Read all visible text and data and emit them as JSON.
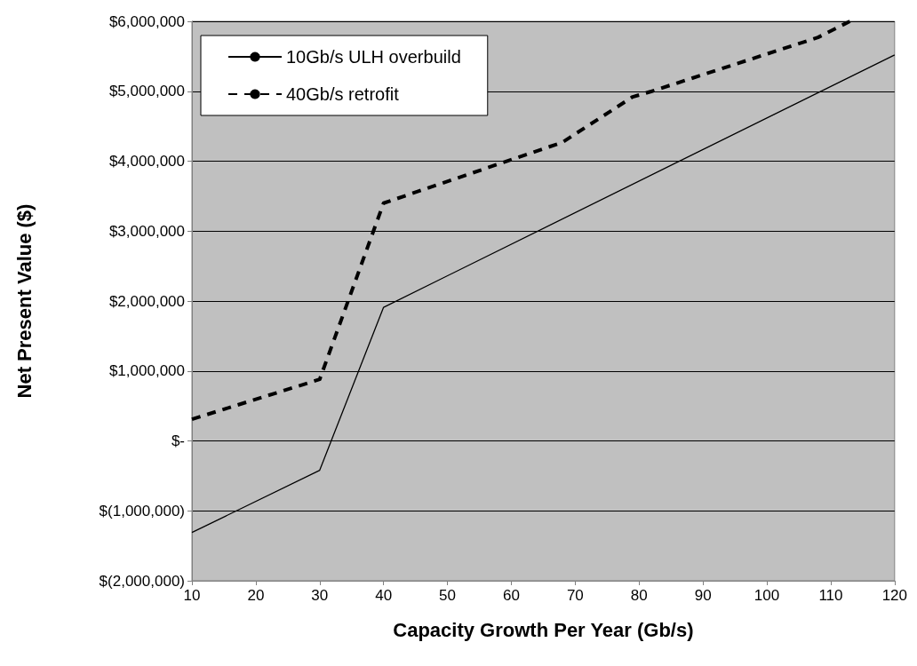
{
  "chart_data": {
    "type": "line",
    "xlabel": "Capacity Growth Per Year (Gb/s)",
    "ylabel": "Net Present Value ($)",
    "xlim": [
      10,
      120
    ],
    "xticks": [
      10,
      20,
      30,
      40,
      50,
      60,
      70,
      80,
      90,
      100,
      110,
      120
    ],
    "ylim": [
      -2000000,
      6000000
    ],
    "yticks": [
      {
        "value": -2000000,
        "label": "$(2,000,000)"
      },
      {
        "value": -1000000,
        "label": "$(1,000,000)"
      },
      {
        "value": 0,
        "label": "$-"
      },
      {
        "value": 1000000,
        "label": "$1,000,000"
      },
      {
        "value": 2000000,
        "label": "$2,000,000"
      },
      {
        "value": 3000000,
        "label": "$3,000,000"
      },
      {
        "value": 4000000,
        "label": "$4,000,000"
      },
      {
        "value": 5000000,
        "label": "$5,000,000"
      },
      {
        "value": 6000000,
        "label": "$6,000,000"
      }
    ],
    "grid": "y",
    "legend": "top left",
    "marker": "none",
    "series": [
      {
        "name": "10Gb/s ULH overbuild",
        "color": "#000000",
        "line_style": "solid",
        "x": [
          10,
          30,
          40,
          120
        ],
        "values": [
          -1310000,
          -420000,
          1910000,
          5520000
        ]
      },
      {
        "name": "40Gb/s retrofit",
        "color": "#000000",
        "line_style": "dashed",
        "x": [
          10,
          30,
          40,
          68,
          79,
          82,
          108,
          113
        ],
        "values": [
          310000,
          880000,
          3400000,
          4270000,
          4920000,
          5000000,
          5770000,
          6000000
        ]
      }
    ]
  }
}
